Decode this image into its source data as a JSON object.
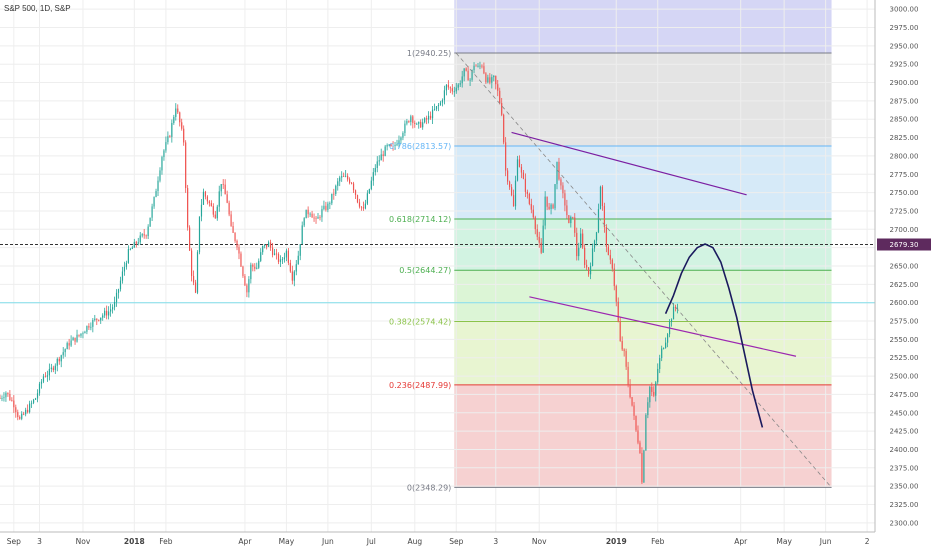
{
  "chart_data": {
    "type": "candlestick",
    "title": "S&P 500, 1D, S&P",
    "y_axis": {
      "min": 2287.5,
      "max": 3012.5,
      "ticks": [
        3000,
        2975,
        2950,
        2925,
        2900,
        2875,
        2850,
        2825,
        2800,
        2775,
        2750,
        2725,
        2700,
        2675,
        2650,
        2625,
        2600,
        2575,
        2550,
        2525,
        2500,
        2475,
        2450,
        2425,
        2400,
        2375,
        2350,
        2325,
        2300
      ],
      "tick_labels": [
        "3000.00",
        "2975.00",
        "2950.00",
        "2925.00",
        "2900.00",
        "2875.00",
        "2850.00",
        "2825.00",
        "2800.00",
        "2775.00",
        "2750.00",
        "2725.00",
        "2700.00",
        "2675.00",
        "2650.00",
        "2625.00",
        "2600.00",
        "2575.00",
        "2550.00",
        "2525.00",
        "2500.00",
        "2475.00",
        "2450.00",
        "2425.00",
        "2400.00",
        "2375.00",
        "2350.00",
        "2325.00",
        "2300.00"
      ]
    },
    "x_axis": {
      "labels": [
        {
          "text": "Sep",
          "bar": 7
        },
        {
          "text": "3",
          "bar": 20
        },
        {
          "text": "Nov",
          "bar": 42
        },
        {
          "text": "2018",
          "bar": 68,
          "bold": true
        },
        {
          "text": "Feb",
          "bar": 84
        },
        {
          "text": "Apr",
          "bar": 124
        },
        {
          "text": "May",
          "bar": 145
        },
        {
          "text": "Jun",
          "bar": 166
        },
        {
          "text": "Jul",
          "bar": 188
        },
        {
          "text": "Aug",
          "bar": 210
        },
        {
          "text": "Sep",
          "bar": 231
        },
        {
          "text": "3",
          "bar": 251
        },
        {
          "text": "Nov",
          "bar": 273
        },
        {
          "text": "2019",
          "bar": 312,
          "bold": true
        },
        {
          "text": "Feb",
          "bar": 333
        },
        {
          "text": "Apr",
          "bar": 375
        },
        {
          "text": "May",
          "bar": 397
        },
        {
          "text": "Jun",
          "bar": 418
        },
        {
          "text": "2",
          "bar": 439
        }
      ],
      "total_bars": 443
    },
    "price_path": [
      [
        0,
        2470
      ],
      [
        3,
        2478
      ],
      [
        7,
        2462
      ],
      [
        10,
        2440
      ],
      [
        14,
        2455
      ],
      [
        18,
        2470
      ],
      [
        22,
        2500
      ],
      [
        25,
        2505
      ],
      [
        30,
        2525
      ],
      [
        35,
        2545
      ],
      [
        40,
        2555
      ],
      [
        45,
        2570
      ],
      [
        50,
        2580
      ],
      [
        55,
        2588
      ],
      [
        58,
        2598
      ],
      [
        62,
        2640
      ],
      [
        65,
        2668
      ],
      [
        70,
        2685
      ],
      [
        74,
        2695
      ],
      [
        78,
        2740
      ],
      [
        82,
        2800
      ],
      [
        86,
        2830
      ],
      [
        89,
        2868
      ],
      [
        91,
        2845
      ],
      [
        93,
        2820
      ],
      [
        95,
        2700
      ],
      [
        97,
        2640
      ],
      [
        99,
        2610
      ],
      [
        101,
        2720
      ],
      [
        103,
        2750
      ],
      [
        106,
        2735
      ],
      [
        109,
        2720
      ],
      [
        112,
        2765
      ],
      [
        115,
        2738
      ],
      [
        117,
        2700
      ],
      [
        120,
        2680
      ],
      [
        123,
        2640
      ],
      [
        125,
        2615
      ],
      [
        127,
        2650
      ],
      [
        130,
        2648
      ],
      [
        133,
        2675
      ],
      [
        136,
        2680
      ],
      [
        139,
        2665
      ],
      [
        142,
        2655
      ],
      [
        145,
        2670
      ],
      [
        148,
        2635
      ],
      [
        151,
        2665
      ],
      [
        154,
        2720
      ],
      [
        157,
        2725
      ],
      [
        160,
        2710
      ],
      [
        163,
        2725
      ],
      [
        166,
        2732
      ],
      [
        169,
        2750
      ],
      [
        172,
        2770
      ],
      [
        175,
        2770
      ],
      [
        178,
        2765
      ],
      [
        181,
        2740
      ],
      [
        184,
        2725
      ],
      [
        187,
        2755
      ],
      [
        190,
        2785
      ],
      [
        193,
        2800
      ],
      [
        196,
        2812
      ],
      [
        199,
        2810
      ],
      [
        202,
        2825
      ],
      [
        205,
        2840
      ],
      [
        208,
        2855
      ],
      [
        211,
        2840
      ],
      [
        214,
        2845
      ],
      [
        217,
        2852
      ],
      [
        220,
        2862
      ],
      [
        223,
        2872
      ],
      [
        226,
        2895
      ],
      [
        229,
        2890
      ],
      [
        232,
        2896
      ],
      [
        235,
        2915
      ],
      [
        238,
        2904
      ],
      [
        240,
        2925
      ],
      [
        242,
        2920
      ],
      [
        244,
        2925
      ],
      [
        246,
        2905
      ],
      [
        248,
        2900
      ],
      [
        250,
        2905
      ],
      [
        252,
        2887
      ],
      [
        254,
        2860
      ],
      [
        256,
        2780
      ],
      [
        258,
        2760
      ],
      [
        260,
        2730
      ],
      [
        262,
        2800
      ],
      [
        264,
        2775
      ],
      [
        266,
        2755
      ],
      [
        268,
        2735
      ],
      [
        270,
        2720
      ],
      [
        272,
        2690
      ],
      [
        274,
        2665
      ],
      [
        276,
        2745
      ],
      [
        278,
        2725
      ],
      [
        280,
        2733
      ],
      [
        282,
        2790
      ],
      [
        284,
        2755
      ],
      [
        286,
        2735
      ],
      [
        288,
        2705
      ],
      [
        290,
        2720
      ],
      [
        292,
        2665
      ],
      [
        294,
        2690
      ],
      [
        296,
        2655
      ],
      [
        298,
        2640
      ],
      [
        300,
        2670
      ],
      [
        302,
        2700
      ],
      [
        304,
        2760
      ],
      [
        306,
        2700
      ],
      [
        308,
        2660
      ],
      [
        310,
        2650
      ],
      [
        312,
        2600
      ],
      [
        314,
        2545
      ],
      [
        316,
        2530
      ],
      [
        318,
        2490
      ],
      [
        320,
        2460
      ],
      [
        322,
        2425
      ],
      [
        324,
        2400
      ],
      [
        325,
        2355
      ],
      [
        327,
        2450
      ],
      [
        329,
        2485
      ],
      [
        331,
        2470
      ],
      [
        333,
        2510
      ],
      [
        335,
        2535
      ],
      [
        337,
        2550
      ],
      [
        339,
        2572
      ],
      [
        341,
        2590
      ],
      [
        343,
        2596
      ]
    ],
    "last_price": "2679.30",
    "reference_line": 2600,
    "fibonacci": {
      "start_bar": 230,
      "end_bar": 421,
      "levels": [
        {
          "ratio": "1",
          "price": 2940.25,
          "label": "1(2940.25)",
          "color": "#787b86",
          "fill": "#e4e4e4"
        },
        {
          "ratio": "0.786",
          "price": 2813.57,
          "label": "0.786(2813.57)",
          "color": "#64b5f6",
          "fill": "#d6eaf8"
        },
        {
          "ratio": "0.618",
          "price": 2714.12,
          "label": "0.618(2714.12)",
          "color": "#4caf50",
          "fill": "#d2f3e2"
        },
        {
          "ratio": "0.5",
          "price": 2644.27,
          "label": "0.5(2644.27)",
          "color": "#4caf50",
          "fill": "#dcf5d6"
        },
        {
          "ratio": "0.382",
          "price": 2574.42,
          "label": "0.382(2574.42)",
          "color": "#8bc34a",
          "fill": "#e8f5d1"
        },
        {
          "ratio": "0.236",
          "price": 2487.99,
          "label": "0.236(2487.99)",
          "color": "#e53935",
          "fill": "#f6d1d1"
        },
        {
          "ratio": "0",
          "price": 2348.29,
          "label": "0(2348.29)",
          "color": "#787b86",
          "fill": ""
        }
      ],
      "top_fill": "#d5d6f5"
    },
    "trendlines": [
      {
        "name": "upper-channel",
        "from": [
          259,
          2832
        ],
        "to": [
          378,
          2747
        ],
        "color": "#7b1fa2"
      },
      {
        "name": "lower-channel",
        "from": [
          268,
          2608
        ],
        "to": [
          403,
          2527
        ],
        "color": "#9c27b0"
      },
      {
        "name": "diagonal",
        "from": [
          231,
          2940
        ],
        "to": [
          421,
          2348
        ],
        "color": "#888888"
      }
    ],
    "projection_curve": [
      [
        337,
        2585
      ],
      [
        341,
        2610
      ],
      [
        345,
        2640
      ],
      [
        349,
        2662
      ],
      [
        353,
        2675
      ],
      [
        357,
        2680
      ],
      [
        361,
        2675
      ],
      [
        365,
        2655
      ],
      [
        369,
        2620
      ],
      [
        373,
        2580
      ],
      [
        377,
        2530
      ],
      [
        381,
        2480
      ],
      [
        386,
        2430
      ]
    ],
    "grid": true,
    "legend": "none"
  },
  "colors": {
    "up": "#26a69a",
    "down": "#ef5350",
    "grid": "#eeeeee",
    "projection": "#1a1a5e",
    "badge": "#5e2a5e"
  }
}
